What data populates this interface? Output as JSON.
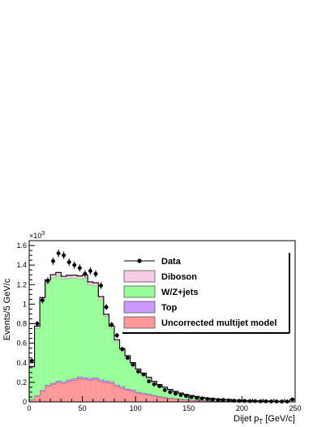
{
  "chart_data": {
    "type": "bar",
    "stacked": true,
    "bin_width": 5,
    "x_bin_low_edges": [
      0,
      5,
      10,
      15,
      20,
      25,
      30,
      35,
      40,
      45,
      50,
      55,
      60,
      65,
      70,
      75,
      80,
      85,
      90,
      95,
      100,
      105,
      110,
      115,
      120,
      125,
      130,
      135,
      140,
      145,
      150,
      155,
      160,
      165,
      170,
      175,
      180,
      185,
      190,
      195,
      200,
      205,
      210,
      215,
      220,
      225,
      230,
      235,
      240,
      245
    ],
    "xlabel": "Dijet p_T [GeV/c]",
    "xlabel_main": "Dijet p",
    "xlabel_sub": "T",
    "xlabel_unit": " [GeV/c]",
    "ylabel": "Events/5 GeV/c",
    "y_multiplier": "×10³",
    "y_multiplier_base": "×10",
    "y_multiplier_exp": "3",
    "xlim": [
      0,
      250
    ],
    "ylim": [
      0,
      1.65
    ],
    "x_ticks": [
      0,
      50,
      100,
      150,
      200,
      250
    ],
    "y_ticks": [
      0,
      0.2,
      0.4,
      0.6,
      0.8,
      1,
      1.2,
      1.4,
      1.6
    ],
    "legend_position": "top-right",
    "series": [
      {
        "name": "Uncorrected multijet model",
        "color": "#ff9999",
        "values": [
          0.02,
          0.06,
          0.11,
          0.16,
          0.18,
          0.2,
          0.19,
          0.21,
          0.22,
          0.24,
          0.23,
          0.22,
          0.23,
          0.21,
          0.2,
          0.19,
          0.16,
          0.14,
          0.12,
          0.11,
          0.09,
          0.08,
          0.07,
          0.06,
          0.05,
          0.04,
          0.035,
          0.03,
          0.025,
          0.02,
          0.018,
          0.015,
          0.012,
          0.01,
          0.01,
          0.008,
          0.007,
          0.006,
          0.005,
          0.005,
          0.004,
          0.004,
          0.003,
          0.003,
          0.003,
          0.002,
          0.002,
          0.002,
          0.002,
          0.002
        ]
      },
      {
        "name": "Top",
        "color": "#cc99ff",
        "values": [
          0.002,
          0.005,
          0.008,
          0.01,
          0.012,
          0.014,
          0.015,
          0.016,
          0.017,
          0.018,
          0.018,
          0.018,
          0.018,
          0.017,
          0.016,
          0.016,
          0.015,
          0.014,
          0.013,
          0.012,
          0.011,
          0.01,
          0.009,
          0.008,
          0.007,
          0.006,
          0.005,
          0.004,
          0.004,
          0.003,
          0.003,
          0.002,
          0.002,
          0.002,
          0.002,
          0.001,
          0.001,
          0.001,
          0.001,
          0.001,
          0.001,
          0.001,
          0.001,
          0.001,
          0.001,
          0.001,
          0.001,
          0.001,
          0.001,
          0.001
        ]
      },
      {
        "name": "W/Z+jets",
        "color": "#99ff99",
        "values": [
          0.33,
          0.69,
          0.92,
          1.05,
          1.08,
          1.08,
          1.05,
          1.04,
          1.03,
          1.0,
          1.02,
          0.96,
          0.94,
          0.82,
          0.66,
          0.55,
          0.44,
          0.37,
          0.32,
          0.26,
          0.22,
          0.19,
          0.16,
          0.13,
          0.11,
          0.095,
          0.08,
          0.066,
          0.056,
          0.047,
          0.04,
          0.034,
          0.028,
          0.023,
          0.019,
          0.017,
          0.014,
          0.012,
          0.01,
          0.009,
          0.008,
          0.007,
          0.006,
          0.005,
          0.005,
          0.004,
          0.004,
          0.003,
          0.003,
          0.02
        ]
      },
      {
        "name": "Diboson",
        "color": "#ffccee",
        "values": [
          0.01,
          0.02,
          0.03,
          0.03,
          0.03,
          0.03,
          0.03,
          0.03,
          0.03,
          0.03,
          0.03,
          0.03,
          0.03,
          0.03,
          0.02,
          0.02,
          0.02,
          0.02,
          0.02,
          0.02,
          0.015,
          0.015,
          0.012,
          0.012,
          0.01,
          0.01,
          0.008,
          0.008,
          0.006,
          0.006,
          0.005,
          0.005,
          0.004,
          0.004,
          0.003,
          0.003,
          0.003,
          0.002,
          0.002,
          0.002,
          0.002,
          0.002,
          0.001,
          0.001,
          0.001,
          0.001,
          0.001,
          0.001,
          0.001,
          0.001
        ]
      }
    ],
    "data": {
      "name": "Data",
      "x": [
        2.5,
        7.5,
        12.5,
        17.5,
        22.5,
        27.5,
        32.5,
        37.5,
        42.5,
        47.5,
        52.5,
        57.5,
        62.5,
        67.5,
        72.5,
        77.5,
        82.5,
        87.5,
        92.5,
        97.5,
        102.5,
        107.5,
        112.5,
        117.5,
        122.5,
        127.5,
        132.5,
        137.5,
        142.5,
        147.5,
        152.5,
        157.5,
        162.5,
        167.5,
        172.5,
        177.5,
        182.5,
        187.5,
        192.5,
        197.5,
        202.5,
        207.5,
        212.5,
        217.5,
        222.5,
        227.5,
        232.5,
        237.5,
        242.5,
        247.5
      ],
      "y": [
        0.42,
        0.8,
        1.04,
        1.24,
        1.44,
        1.52,
        1.5,
        1.43,
        1.4,
        1.37,
        1.31,
        1.34,
        1.31,
        1.19,
        0.97,
        0.79,
        0.68,
        0.54,
        0.45,
        0.38,
        0.31,
        0.28,
        0.21,
        0.18,
        0.16,
        0.12,
        0.1,
        0.085,
        0.07,
        0.06,
        0.05,
        0.04,
        0.035,
        0.03,
        0.025,
        0.02,
        0.02,
        0.015,
        0.012,
        0.01,
        0.01,
        0.008,
        0.008,
        0.006,
        0.006,
        0.005,
        0.005,
        0.004,
        0.004,
        0.025
      ]
    },
    "legend": [
      {
        "label": "Data",
        "style": "marker"
      },
      {
        "label": "Diboson",
        "style": "box",
        "color": "#ffccee"
      },
      {
        "label": "W/Z+jets",
        "style": "box",
        "color": "#99ff99"
      },
      {
        "label": "Top",
        "style": "box",
        "color": "#cc99ff"
      },
      {
        "label": "Uncorrected multijet model",
        "style": "box",
        "color": "#ff9999"
      }
    ]
  }
}
